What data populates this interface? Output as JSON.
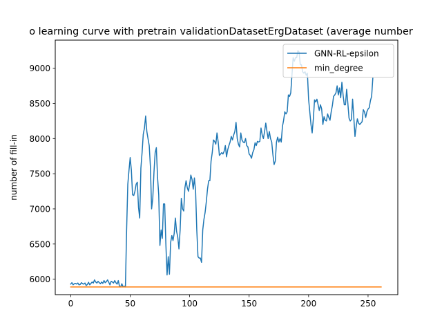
{
  "chart_data": {
    "type": "line",
    "title": "o learning curve with pretrain validationDatasetErgDataset (average number",
    "xlabel": "",
    "ylabel": "number of fill-in",
    "xlim": [
      -13,
      275
    ],
    "ylim": [
      5780,
      9400
    ],
    "xticks": [
      0,
      50,
      100,
      150,
      200,
      250
    ],
    "yticks": [
      6000,
      6500,
      7000,
      7500,
      8000,
      8500,
      9000
    ],
    "legend_position": "top-right",
    "grid": false,
    "series": [
      {
        "name": "GNN-RL-epsilon",
        "color": "#1f77b4",
        "points": [
          [
            0,
            5930
          ],
          [
            1,
            5950
          ],
          [
            2,
            5920
          ],
          [
            3,
            5935
          ],
          [
            4,
            5940
          ],
          [
            5,
            5930
          ],
          [
            6,
            5945
          ],
          [
            7,
            5920
          ],
          [
            8,
            5925
          ],
          [
            9,
            5950
          ],
          [
            10,
            5935
          ],
          [
            11,
            5930
          ],
          [
            12,
            5945
          ],
          [
            13,
            5910
          ],
          [
            14,
            5925
          ],
          [
            15,
            5955
          ],
          [
            16,
            5920
          ],
          [
            17,
            5940
          ],
          [
            18,
            5960
          ],
          [
            19,
            5945
          ],
          [
            20,
            5990
          ],
          [
            21,
            5960
          ],
          [
            22,
            5945
          ],
          [
            23,
            5970
          ],
          [
            24,
            5950
          ],
          [
            25,
            5935
          ],
          [
            26,
            5960
          ],
          [
            27,
            5940
          ],
          [
            28,
            5980
          ],
          [
            29,
            5950
          ],
          [
            30,
            5965
          ],
          [
            31,
            5990
          ],
          [
            32,
            5955
          ],
          [
            33,
            5920
          ],
          [
            34,
            5970
          ],
          [
            35,
            5960
          ],
          [
            36,
            5945
          ],
          [
            37,
            5980
          ],
          [
            38,
            5950
          ],
          [
            39,
            5930
          ],
          [
            40,
            5980
          ],
          [
            41,
            5900
          ],
          [
            42,
            5890
          ],
          [
            43,
            5935
          ],
          [
            44,
            5890
          ],
          [
            45,
            5900
          ],
          [
            46,
            5890
          ],
          [
            47,
            6700
          ],
          [
            48,
            7350
          ],
          [
            49,
            7550
          ],
          [
            50,
            7730
          ],
          [
            51,
            7550
          ],
          [
            52,
            7200
          ],
          [
            53,
            7190
          ],
          [
            54,
            7250
          ],
          [
            55,
            7350
          ],
          [
            56,
            7380
          ],
          [
            57,
            7020
          ],
          [
            58,
            6870
          ],
          [
            59,
            7580
          ],
          [
            60,
            7800
          ],
          [
            61,
            8060
          ],
          [
            62,
            8150
          ],
          [
            63,
            8320
          ],
          [
            64,
            8100
          ],
          [
            65,
            8000
          ],
          [
            66,
            7900
          ],
          [
            67,
            7600
          ],
          [
            68,
            7000
          ],
          [
            69,
            7150
          ],
          [
            70,
            7520
          ],
          [
            71,
            7800
          ],
          [
            72,
            7870
          ],
          [
            73,
            7450
          ],
          [
            74,
            7200
          ],
          [
            75,
            6480
          ],
          [
            76,
            6700
          ],
          [
            77,
            6580
          ],
          [
            78,
            7070
          ],
          [
            79,
            7070
          ],
          [
            80,
            6500
          ],
          [
            81,
            6060
          ],
          [
            82,
            6320
          ],
          [
            83,
            6070
          ],
          [
            84,
            6520
          ],
          [
            85,
            6620
          ],
          [
            86,
            6550
          ],
          [
            87,
            6650
          ],
          [
            88,
            6870
          ],
          [
            89,
            6680
          ],
          [
            90,
            6600
          ],
          [
            91,
            6430
          ],
          [
            92,
            6700
          ],
          [
            93,
            7150
          ],
          [
            94,
            7000
          ],
          [
            95,
            6970
          ],
          [
            96,
            7300
          ],
          [
            97,
            7400
          ],
          [
            98,
            7300
          ],
          [
            99,
            7250
          ],
          [
            100,
            7350
          ],
          [
            101,
            7480
          ],
          [
            102,
            7420
          ],
          [
            103,
            7280
          ],
          [
            104,
            7440
          ],
          [
            105,
            7250
          ],
          [
            106,
            6700
          ],
          [
            107,
            6320
          ],
          [
            108,
            6300
          ],
          [
            109,
            6300
          ],
          [
            110,
            6240
          ],
          [
            111,
            6700
          ],
          [
            112,
            6850
          ],
          [
            113,
            6950
          ],
          [
            114,
            7100
          ],
          [
            115,
            7280
          ],
          [
            116,
            7400
          ],
          [
            117,
            7400
          ],
          [
            118,
            7680
          ],
          [
            119,
            7800
          ],
          [
            120,
            7980
          ],
          [
            121,
            7960
          ],
          [
            122,
            7920
          ],
          [
            123,
            8080
          ],
          [
            124,
            7950
          ],
          [
            125,
            7760
          ],
          [
            126,
            7780
          ],
          [
            127,
            7800
          ],
          [
            128,
            7780
          ],
          [
            129,
            7820
          ],
          [
            130,
            7900
          ],
          [
            131,
            7740
          ],
          [
            132,
            7840
          ],
          [
            133,
            7900
          ],
          [
            134,
            7950
          ],
          [
            135,
            8030
          ],
          [
            136,
            7980
          ],
          [
            137,
            8050
          ],
          [
            138,
            8100
          ],
          [
            139,
            8230
          ],
          [
            140,
            8000
          ],
          [
            141,
            7920
          ],
          [
            142,
            7880
          ],
          [
            143,
            8080
          ],
          [
            144,
            7980
          ],
          [
            145,
            7950
          ],
          [
            146,
            7940
          ],
          [
            147,
            8000
          ],
          [
            148,
            7900
          ],
          [
            149,
            7880
          ],
          [
            150,
            7780
          ],
          [
            151,
            7760
          ],
          [
            152,
            7720
          ],
          [
            153,
            7800
          ],
          [
            154,
            7840
          ],
          [
            155,
            7940
          ],
          [
            156,
            7900
          ],
          [
            157,
            7960
          ],
          [
            158,
            7950
          ],
          [
            159,
            7960
          ],
          [
            160,
            8150
          ],
          [
            161,
            8050
          ],
          [
            162,
            8000
          ],
          [
            163,
            8100
          ],
          [
            164,
            8220
          ],
          [
            165,
            8100
          ],
          [
            166,
            8000
          ],
          [
            167,
            8100
          ],
          [
            168,
            8000
          ],
          [
            169,
            7950
          ],
          [
            170,
            7770
          ],
          [
            171,
            7630
          ],
          [
            172,
            7680
          ],
          [
            173,
            7950
          ],
          [
            174,
            8020
          ],
          [
            175,
            7950
          ],
          [
            176,
            8000
          ],
          [
            177,
            7950
          ],
          [
            178,
            8170
          ],
          [
            179,
            8260
          ],
          [
            180,
            8380
          ],
          [
            181,
            8350
          ],
          [
            182,
            8380
          ],
          [
            183,
            8620
          ],
          [
            184,
            8600
          ],
          [
            185,
            8650
          ],
          [
            186,
            8900
          ],
          [
            187,
            9150
          ],
          [
            188,
            9100
          ],
          [
            189,
            9150
          ],
          [
            190,
            9150
          ],
          [
            191,
            9250
          ],
          [
            192,
            9230
          ],
          [
            193,
            9050
          ],
          [
            194,
            9050
          ],
          [
            195,
            8950
          ],
          [
            196,
            8930
          ],
          [
            197,
            8950
          ],
          [
            198,
            8900
          ],
          [
            199,
            8930
          ],
          [
            200,
            8560
          ],
          [
            201,
            8380
          ],
          [
            202,
            8200
          ],
          [
            203,
            8080
          ],
          [
            204,
            8280
          ],
          [
            205,
            8550
          ],
          [
            206,
            8520
          ],
          [
            207,
            8560
          ],
          [
            208,
            8480
          ],
          [
            209,
            8400
          ],
          [
            210,
            8480
          ],
          [
            211,
            8420
          ],
          [
            212,
            8200
          ],
          [
            213,
            8310
          ],
          [
            214,
            8260
          ],
          [
            215,
            8250
          ],
          [
            216,
            8350
          ],
          [
            217,
            8300
          ],
          [
            218,
            8260
          ],
          [
            219,
            8380
          ],
          [
            220,
            8470
          ],
          [
            221,
            8600
          ],
          [
            222,
            8620
          ],
          [
            223,
            8650
          ],
          [
            224,
            8750
          ],
          [
            225,
            8620
          ],
          [
            226,
            8720
          ],
          [
            227,
            8580
          ],
          [
            228,
            8800
          ],
          [
            229,
            8620
          ],
          [
            230,
            8480
          ],
          [
            231,
            8480
          ],
          [
            232,
            8700
          ],
          [
            233,
            8500
          ],
          [
            234,
            8290
          ],
          [
            235,
            8250
          ],
          [
            236,
            8270
          ],
          [
            237,
            8560
          ],
          [
            238,
            8300
          ],
          [
            239,
            8030
          ],
          [
            240,
            8170
          ],
          [
            241,
            8280
          ],
          [
            242,
            8220
          ],
          [
            243,
            8200
          ],
          [
            244,
            8220
          ],
          [
            245,
            8240
          ],
          [
            246,
            8410
          ],
          [
            247,
            8380
          ],
          [
            248,
            8300
          ],
          [
            249,
            8380
          ],
          [
            250,
            8420
          ],
          [
            251,
            8440
          ],
          [
            252,
            8540
          ],
          [
            253,
            8600
          ],
          [
            254,
            8860
          ]
        ]
      },
      {
        "name": "min_degree",
        "color": "#ff7f0e",
        "points": [
          [
            0,
            5889
          ],
          [
            261,
            5889
          ]
        ]
      }
    ]
  }
}
